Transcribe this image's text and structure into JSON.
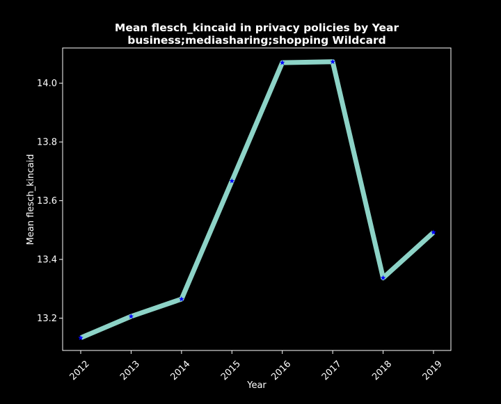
{
  "chart_data": {
    "type": "line",
    "title_line1": "Mean flesch_kincaid in privacy policies by Year",
    "title_line2": "business;mediasharing;shopping Wildcard",
    "xlabel": "Year",
    "ylabel": "Mean flesch_kincaid",
    "x": [
      "2012",
      "2013",
      "2014",
      "2015",
      "2016",
      "2017",
      "2018",
      "2019"
    ],
    "y": [
      13.133,
      13.206,
      13.265,
      13.667,
      14.07,
      14.073,
      13.337,
      13.492
    ],
    "yticks": [
      "13.2",
      "13.4",
      "13.6",
      "13.8",
      "14.0"
    ],
    "ylim": [
      13.09,
      14.12
    ],
    "grid": false,
    "line_color": "#8dd3c7",
    "marker_color": "#0000ff",
    "marker": "star",
    "background": "#000000",
    "axis_color": "#ffffff"
  }
}
